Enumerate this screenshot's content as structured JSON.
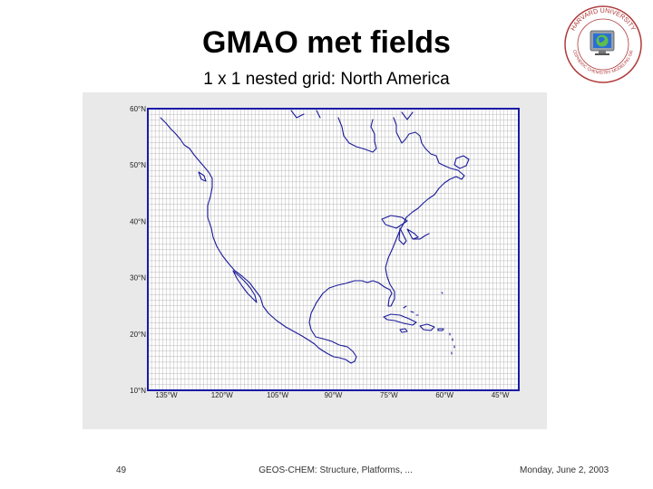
{
  "slide": {
    "title": "GMAO met fields",
    "subtitle": "1 x 1 nested grid: North America",
    "footer_page": "49",
    "footer_center": "GEOS-CHEM: Structure, Platforms, ...",
    "footer_date": "Monday, June 2, 2003"
  },
  "logo": {
    "top_text": "HARVARD UNIVERSITY",
    "bottom_text": "ATMOSPHERIC CHEMISTRY MODELING GROUP",
    "icon": "globe-on-monitor-icon",
    "ring_color": "#b03a3a"
  },
  "map": {
    "lat_labels": [
      "60°N",
      "50°N",
      "40°N",
      "30°N",
      "20°N",
      "10°N"
    ],
    "lon_labels": [
      "135°W",
      "120°W",
      "105°W",
      "90°W",
      "75°W",
      "60°W",
      "45°W"
    ],
    "lat_values": [
      60,
      50,
      40,
      30,
      20,
      10
    ],
    "lon_values": [
      -135,
      -120,
      -105,
      -90,
      -75,
      -60,
      -45
    ],
    "extent": {
      "lon_min": -140,
      "lon_max": -40,
      "lat_min": 10,
      "lat_max": 60
    },
    "grid_resolution_deg": 1,
    "colors": {
      "frame": "#1a1aa6",
      "coast": "#1a1a9a",
      "grid": "#b8b8b8",
      "panel": "#e9e9e9",
      "plot_bg": "#ffffff"
    }
  }
}
